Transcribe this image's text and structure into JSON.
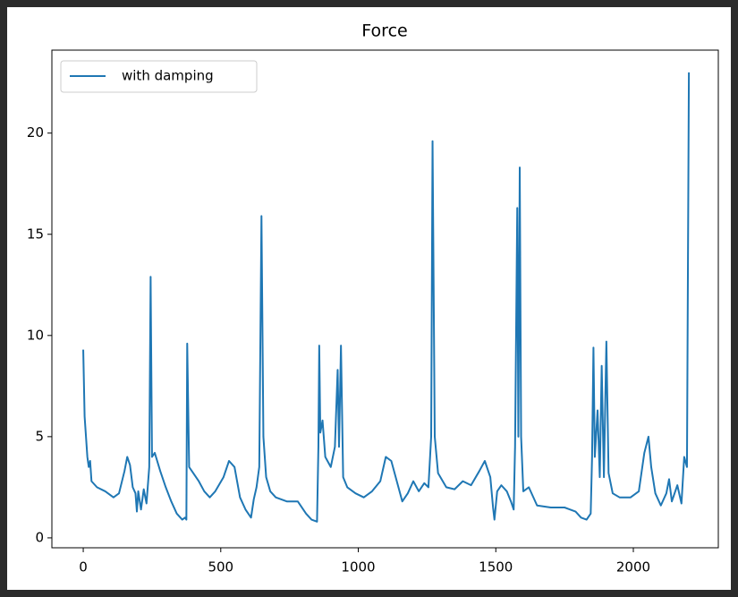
{
  "chart_data": {
    "type": "line",
    "title": "Force",
    "x": [
      0,
      5,
      15,
      20,
      25,
      30,
      50,
      80,
      110,
      130,
      150,
      160,
      170,
      180,
      190,
      195,
      200,
      210,
      220,
      230,
      240,
      245,
      250,
      260,
      280,
      300,
      320,
      340,
      360,
      370,
      375,
      378,
      385,
      400,
      420,
      440,
      460,
      480,
      510,
      530,
      550,
      570,
      590,
      610,
      620,
      630,
      640,
      648,
      655,
      665,
      680,
      700,
      740,
      780,
      810,
      830,
      850,
      855,
      858,
      862,
      870,
      880,
      900,
      915,
      925,
      930,
      937,
      945,
      960,
      990,
      1020,
      1050,
      1080,
      1100,
      1120,
      1140,
      1160,
      1180,
      1200,
      1220,
      1240,
      1255,
      1265,
      1270,
      1278,
      1290,
      1320,
      1350,
      1380,
      1410,
      1440,
      1460,
      1480,
      1490,
      1495,
      1505,
      1520,
      1540,
      1555,
      1565,
      1570,
      1578,
      1582,
      1587,
      1592,
      1600,
      1620,
      1650,
      1700,
      1750,
      1790,
      1810,
      1830,
      1845,
      1850,
      1855,
      1860,
      1870,
      1878,
      1885,
      1893,
      1902,
      1910,
      1925,
      1950,
      1990,
      2020,
      2040,
      2055,
      2065,
      2080,
      2100,
      2120,
      2130,
      2140,
      2160,
      2175,
      2185,
      2195,
      2202
    ],
    "series": [
      {
        "name": "with damping",
        "color": "#1f77b4",
        "values": [
          9.3,
          6,
          4,
          3.5,
          3.8,
          2.8,
          2.5,
          2.3,
          2.0,
          2.2,
          3.3,
          4.0,
          3.6,
          2.5,
          2.2,
          1.3,
          2.3,
          1.4,
          2.4,
          1.7,
          3.5,
          12.9,
          4.0,
          4.2,
          3.3,
          2.5,
          1.8,
          1.2,
          0.9,
          1.0,
          0.9,
          9.6,
          3.5,
          3.2,
          2.8,
          2.3,
          2.0,
          2.3,
          3.0,
          3.8,
          3.5,
          2.0,
          1.4,
          1.0,
          1.9,
          2.5,
          3.5,
          15.9,
          5,
          3.0,
          2.3,
          2.0,
          1.8,
          1.8,
          1.2,
          0.9,
          0.8,
          4.5,
          9.5,
          5.2,
          5.8,
          4.0,
          3.5,
          4.5,
          8.3,
          4.5,
          9.5,
          3.0,
          2.5,
          2.2,
          2.0,
          2.3,
          2.8,
          4.0,
          3.8,
          2.8,
          1.8,
          2.2,
          2.8,
          2.3,
          2.7,
          2.5,
          5,
          19.6,
          5,
          3.2,
          2.5,
          2.4,
          2.8,
          2.6,
          3.3,
          3.8,
          3.0,
          1.5,
          0.9,
          2.3,
          2.6,
          2.3,
          1.8,
          1.4,
          4.5,
          16.3,
          5,
          18.3,
          5,
          2.3,
          2.5,
          1.6,
          1.5,
          1.5,
          1.3,
          1.0,
          0.9,
          1.2,
          4.0,
          9.4,
          4.0,
          6.3,
          3.0,
          8.5,
          3.0,
          9.7,
          3.2,
          2.2,
          2.0,
          2.0,
          2.3,
          4.2,
          5.0,
          3.5,
          2.2,
          1.6,
          2.2,
          2.9,
          1.8,
          2.6,
          1.7,
          4.0,
          3.5,
          23.0
        ]
      }
    ],
    "xlim": [
      -114,
      2309
    ],
    "ylim": [
      -0.49,
      24.1
    ],
    "xticks": [
      0,
      500,
      1000,
      1500,
      2000
    ],
    "yticks": [
      0,
      5,
      10,
      15,
      20
    ],
    "grid": false,
    "legend": "upper-left"
  }
}
